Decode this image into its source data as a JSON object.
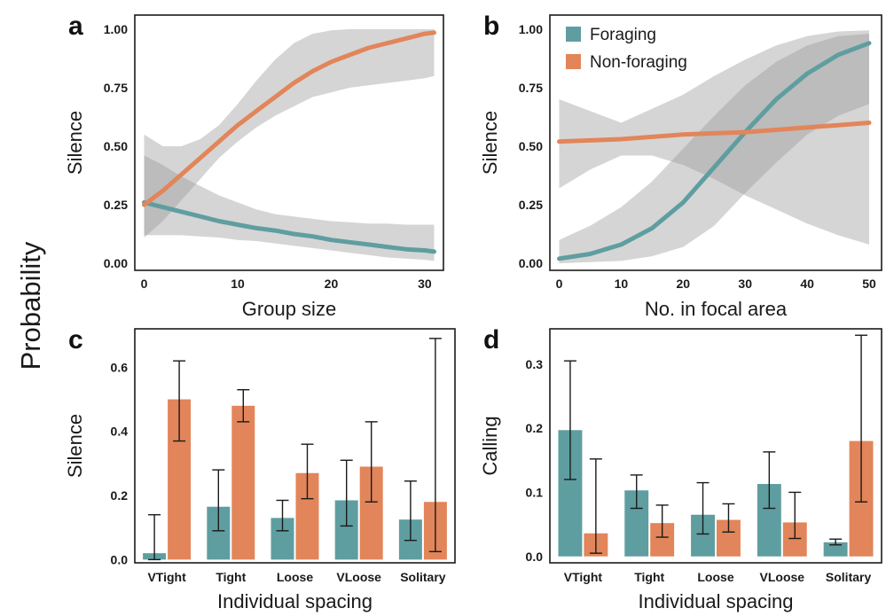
{
  "figure": {
    "global_ylabel": "Probability"
  },
  "colors": {
    "foraging": "#5f9ea0",
    "non_foraging": "#e2855a",
    "ci_band": "#9c9c9c"
  },
  "legend": {
    "position": "top-left",
    "panel": "b",
    "entries": [
      {
        "label": "Foraging",
        "color": "#5f9ea0"
      },
      {
        "label": "Non-foraging",
        "color": "#e2855a"
      }
    ]
  },
  "chart_data": [
    {
      "panel": "a",
      "type": "line",
      "xlabel": "Group size",
      "ylabel": "Silence",
      "xlim": [
        -1,
        32
      ],
      "ylim": [
        -0.03,
        1.06
      ],
      "xticks": [
        0,
        10,
        20,
        30
      ],
      "yticks": [
        0.0,
        0.25,
        0.5,
        0.75,
        1.0
      ],
      "ytick_labels": [
        "0.00",
        "0.25",
        "0.50",
        "0.75",
        "1.00"
      ],
      "grid": false,
      "series": [
        {
          "name": "Foraging",
          "color": "#5f9ea0",
          "x": [
            0,
            2,
            4,
            6,
            8,
            10,
            12,
            14,
            16,
            18,
            20,
            22,
            24,
            26,
            28,
            30,
            31
          ],
          "y": [
            0.26,
            0.24,
            0.22,
            0.2,
            0.18,
            0.165,
            0.15,
            0.14,
            0.125,
            0.115,
            0.1,
            0.09,
            0.08,
            0.07,
            0.06,
            0.055,
            0.05
          ],
          "ci_low": [
            0.12,
            0.12,
            0.12,
            0.115,
            0.11,
            0.1,
            0.095,
            0.085,
            0.075,
            0.065,
            0.055,
            0.045,
            0.035,
            0.025,
            0.02,
            0.015,
            0.01
          ],
          "ci_high": [
            0.46,
            0.42,
            0.37,
            0.33,
            0.29,
            0.26,
            0.23,
            0.21,
            0.2,
            0.19,
            0.18,
            0.175,
            0.17,
            0.17,
            0.165,
            0.165,
            0.165
          ]
        },
        {
          "name": "Non-foraging",
          "color": "#e2855a",
          "x": [
            0,
            2,
            4,
            6,
            8,
            10,
            12,
            14,
            16,
            18,
            20,
            22,
            24,
            26,
            28,
            30,
            31
          ],
          "y": [
            0.25,
            0.31,
            0.38,
            0.45,
            0.52,
            0.59,
            0.65,
            0.71,
            0.77,
            0.82,
            0.86,
            0.89,
            0.92,
            0.94,
            0.96,
            0.98,
            0.985
          ],
          "ci_low": [
            0.11,
            0.18,
            0.27,
            0.36,
            0.45,
            0.52,
            0.58,
            0.63,
            0.67,
            0.71,
            0.73,
            0.75,
            0.76,
            0.77,
            0.78,
            0.79,
            0.8
          ],
          "ci_high": [
            0.55,
            0.5,
            0.5,
            0.53,
            0.59,
            0.68,
            0.78,
            0.87,
            0.94,
            0.98,
            0.995,
            1.0,
            1.0,
            1.0,
            1.0,
            1.0,
            1.0
          ]
        }
      ]
    },
    {
      "panel": "b",
      "type": "line",
      "xlabel": "No. in focal area",
      "ylabel": "Silence",
      "xlim": [
        -1.5,
        52
      ],
      "ylim": [
        -0.03,
        1.06
      ],
      "xticks": [
        0,
        10,
        20,
        30,
        40,
        50
      ],
      "yticks": [
        0.0,
        0.25,
        0.5,
        0.75,
        1.0
      ],
      "ytick_labels": [
        "0.00",
        "0.25",
        "0.50",
        "0.75",
        "1.00"
      ],
      "grid": false,
      "series": [
        {
          "name": "Foraging",
          "color": "#5f9ea0",
          "x": [
            0,
            5,
            10,
            15,
            20,
            25,
            30,
            35,
            40,
            45,
            50
          ],
          "y": [
            0.02,
            0.04,
            0.08,
            0.15,
            0.26,
            0.41,
            0.56,
            0.7,
            0.81,
            0.89,
            0.94
          ],
          "ci_low": [
            0.0,
            0.005,
            0.01,
            0.03,
            0.07,
            0.16,
            0.3,
            0.43,
            0.55,
            0.63,
            0.68
          ],
          "ci_high": [
            0.1,
            0.16,
            0.24,
            0.35,
            0.49,
            0.63,
            0.76,
            0.86,
            0.93,
            0.97,
            0.98
          ]
        },
        {
          "name": "Non-foraging",
          "color": "#e2855a",
          "x": [
            0,
            5,
            10,
            15,
            20,
            25,
            30,
            35,
            40,
            45,
            50
          ],
          "y": [
            0.52,
            0.525,
            0.53,
            0.54,
            0.55,
            0.555,
            0.56,
            0.57,
            0.58,
            0.59,
            0.6
          ],
          "ci_low": [
            0.32,
            0.4,
            0.46,
            0.46,
            0.42,
            0.36,
            0.29,
            0.23,
            0.17,
            0.12,
            0.08
          ],
          "ci_high": [
            0.7,
            0.65,
            0.6,
            0.66,
            0.72,
            0.8,
            0.87,
            0.93,
            0.97,
            0.99,
            0.995
          ]
        }
      ]
    },
    {
      "panel": "c",
      "type": "bar",
      "xlabel": "Individual spacing",
      "ylabel": "Silence",
      "categories": [
        "VTight",
        "Tight",
        "Loose",
        "VLoose",
        "Solitary"
      ],
      "ylim": [
        -0.01,
        0.72
      ],
      "yticks": [
        0.0,
        0.2,
        0.4,
        0.6
      ],
      "ytick_labels": [
        "0.0",
        "0.2",
        "0.4",
        "0.6"
      ],
      "grid": false,
      "series": [
        {
          "name": "Foraging",
          "color": "#5f9ea0",
          "values": [
            0.02,
            0.165,
            0.13,
            0.185,
            0.125
          ],
          "err_low": [
            0.0,
            0.09,
            0.09,
            0.105,
            0.06
          ],
          "err_high": [
            0.14,
            0.28,
            0.185,
            0.31,
            0.245
          ]
        },
        {
          "name": "Non-foraging",
          "color": "#e2855a",
          "values": [
            0.5,
            0.48,
            0.27,
            0.29,
            0.18
          ],
          "err_low": [
            0.37,
            0.43,
            0.19,
            0.18,
            0.025
          ],
          "err_high": [
            0.62,
            0.53,
            0.36,
            0.43,
            0.69
          ]
        }
      ]
    },
    {
      "panel": "d",
      "type": "bar",
      "xlabel": "Individual spacing",
      "ylabel": "Calling",
      "categories": [
        "VTight",
        "Tight",
        "Loose",
        "VLoose",
        "Solitary"
      ],
      "ylim": [
        -0.01,
        0.355
      ],
      "yticks": [
        0.0,
        0.1,
        0.2,
        0.3
      ],
      "ytick_labels": [
        "0.0",
        "0.1",
        "0.2",
        "0.3"
      ],
      "grid": false,
      "series": [
        {
          "name": "Foraging",
          "color": "#5f9ea0",
          "values": [
            0.197,
            0.103,
            0.065,
            0.113,
            0.022
          ],
          "err_low": [
            0.12,
            0.075,
            0.035,
            0.075,
            0.018
          ],
          "err_high": [
            0.305,
            0.127,
            0.115,
            0.163,
            0.027
          ]
        },
        {
          "name": "Non-foraging",
          "color": "#e2855a",
          "values": [
            0.036,
            0.052,
            0.057,
            0.053,
            0.18
          ],
          "err_low": [
            0.005,
            0.03,
            0.038,
            0.028,
            0.085
          ],
          "err_high": [
            0.152,
            0.08,
            0.082,
            0.1,
            0.345
          ]
        }
      ]
    }
  ]
}
